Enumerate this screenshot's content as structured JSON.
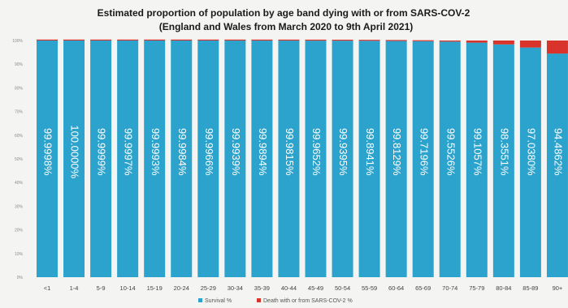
{
  "chart_data": {
    "type": "bar",
    "stacked": true,
    "title": "Estimated proportion of population by age band dying with or from SARS-COV-2",
    "subtitle": "(England and Wales from March 2020 to 9th April 2021)",
    "categories": [
      "<1",
      "1-4",
      "5-9",
      "10-14",
      "15-19",
      "20-24",
      "25-29",
      "30-34",
      "35-39",
      "40-44",
      "45-49",
      "50-54",
      "55-59",
      "60-64",
      "65-69",
      "70-74",
      "75-79",
      "80-84",
      "85-89",
      "90+"
    ],
    "series": [
      {
        "name": "Survival %",
        "color": "#2ba3cc",
        "values": [
          99.9998,
          100.0,
          99.9999,
          99.9997,
          99.9993,
          99.9984,
          99.9966,
          99.9939,
          99.9894,
          99.9815,
          99.9652,
          99.9395,
          99.8941,
          99.8129,
          99.7196,
          99.5526,
          99.1057,
          98.3551,
          97.038,
          94.4862
        ],
        "labels": [
          "99.9998%",
          "100.0000%",
          "99.9999%",
          "99.9997%",
          "99.9993%",
          "99.9984%",
          "99.9966%",
          "99.9939%",
          "99.9894%",
          "99.9815%",
          "99.9652%",
          "99.9395%",
          "99.8941%",
          "99.8129%",
          "99.7196%",
          "99.5526%",
          "99.1057%",
          "98.3551%",
          "97.0380%",
          "94.4862%"
        ]
      },
      {
        "name": "Death with or from SARS-COV-2 %",
        "color": "#d9342b",
        "values": [
          0.0002,
          0.0,
          0.0001,
          0.0003,
          0.0007,
          0.0016,
          0.0034,
          0.0061,
          0.0106,
          0.0185,
          0.0348,
          0.0605,
          0.1059,
          0.1871,
          0.2804,
          0.4474,
          0.8943,
          1.6449,
          2.962,
          5.5138
        ]
      }
    ],
    "ylim": [
      0,
      100
    ],
    "yticks": [
      "0%",
      "10%",
      "20%",
      "30%",
      "40%",
      "50%",
      "60%",
      "70%",
      "80%",
      "90%",
      "100%"
    ],
    "legend_position": "bottom",
    "grid": false
  }
}
